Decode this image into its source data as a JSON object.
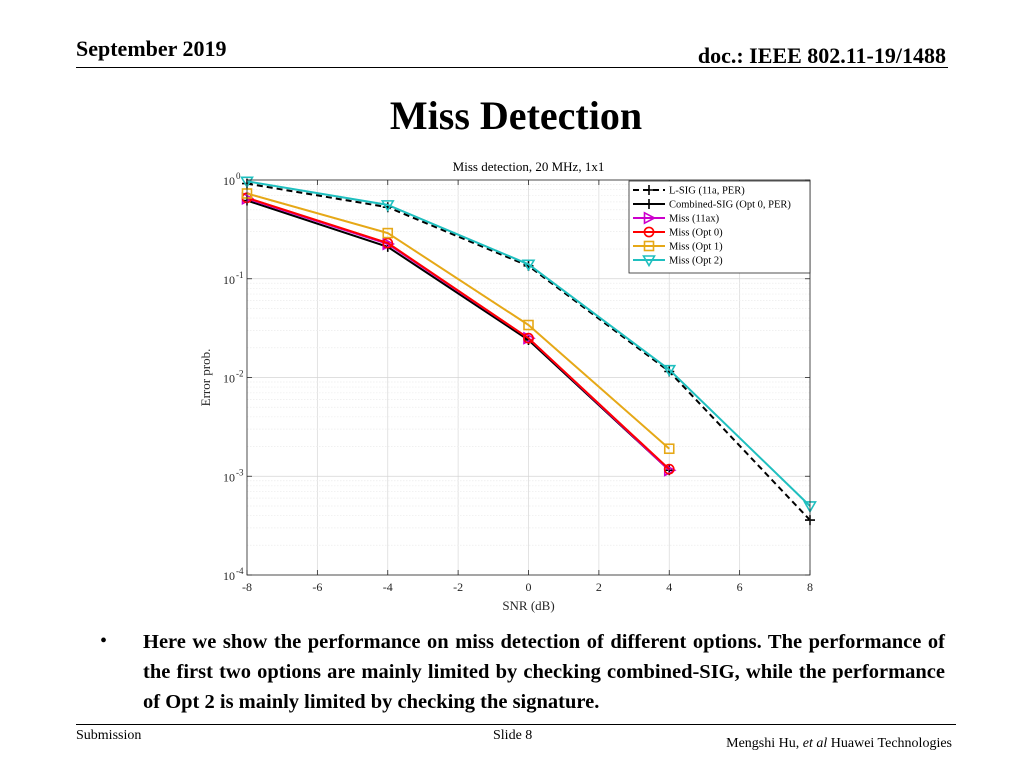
{
  "header": {
    "date": "September 2019",
    "doc_id": "doc.: IEEE 802.11-19/1488"
  },
  "slide_title": "Miss Detection",
  "chart_data": {
    "type": "line",
    "title": "Miss detection, 20 MHz, 1x1",
    "xlabel": "SNR (dB)",
    "ylabel": "Error prob.",
    "yscale": "log",
    "xlim": [
      -8,
      8
    ],
    "ylim": [
      0.0001,
      1
    ],
    "xticks": [
      -8,
      -6,
      -4,
      -2,
      0,
      2,
      4,
      6,
      8
    ],
    "yticks": [
      {
        "value": 1,
        "base": "10",
        "exp": "0"
      },
      {
        "value": 0.1,
        "base": "10",
        "exp": "-1"
      },
      {
        "value": 0.01,
        "base": "10",
        "exp": "-2"
      },
      {
        "value": 0.001,
        "base": "10",
        "exp": "-3"
      },
      {
        "value": 0.0001,
        "base": "10",
        "exp": "-4"
      }
    ],
    "grid": true,
    "legend_position": "top-right",
    "series": [
      {
        "name": "L-SIG (11a, PER)",
        "color": "#000000",
        "dash": true,
        "marker": "plus",
        "x": [
          -8,
          -4,
          0,
          4,
          8
        ],
        "y": [
          0.92,
          0.53,
          0.135,
          0.0115,
          0.00036
        ]
      },
      {
        "name": "Combined-SIG (Opt 0, PER)",
        "color": "#000000",
        "dash": false,
        "marker": "plus",
        "x": [
          -8,
          -4,
          0,
          4
        ],
        "y": [
          0.62,
          0.21,
          0.024,
          0.00115
        ]
      },
      {
        "name": "Miss (11ax)",
        "color": "#cc00cc",
        "dash": false,
        "marker": "triangle-right",
        "x": [
          -8,
          -4,
          0,
          4
        ],
        "y": [
          0.65,
          0.225,
          0.025,
          0.00115
        ]
      },
      {
        "name": "Miss (Opt 0)",
        "color": "#ff0000",
        "dash": false,
        "marker": "circle",
        "x": [
          -8,
          -4,
          0,
          4
        ],
        "y": [
          0.66,
          0.23,
          0.025,
          0.00118
        ]
      },
      {
        "name": "Miss (Opt 1)",
        "color": "#e6a817",
        "dash": false,
        "marker": "square",
        "x": [
          -8,
          -4,
          0,
          4
        ],
        "y": [
          0.73,
          0.29,
          0.034,
          0.0019
        ]
      },
      {
        "name": "Miss (Opt 2)",
        "color": "#1fbfbf",
        "dash": false,
        "marker": "triangle-down",
        "x": [
          -8,
          -4,
          0,
          4,
          8
        ],
        "y": [
          0.97,
          0.56,
          0.14,
          0.012,
          0.0005
        ]
      }
    ]
  },
  "bullet": {
    "symbol": "•",
    "text": "Here we show the performance on miss detection of different options. The performance of the first two options are mainly limited by checking combined-SIG, while the performance of Opt 2 is mainly limited by checking the signature."
  },
  "footer": {
    "left": "Submission",
    "center": "Slide 8",
    "author": "Mengshi Hu,",
    "etal": "et al",
    "org": "Huawei Technologies"
  }
}
